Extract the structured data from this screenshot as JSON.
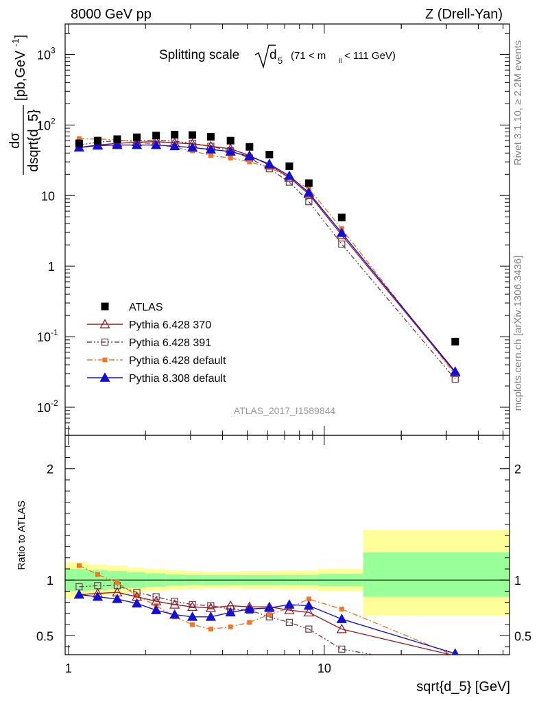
{
  "header": {
    "left": "8000 GeV pp",
    "right": "Z (Drell-Yan)"
  },
  "side_labels": {
    "rivet": "Rivet 3.1.10, ≥ 2.2M events",
    "mcplots": "mcplots.cern.ch [arXiv:1306.3436]"
  },
  "watermark": "ATLAS_2017_I1589844",
  "title": {
    "prefix": "Splitting scale",
    "symbol": "d",
    "sub": "5",
    "range_left": "(71 < m",
    "range_sub": "ll",
    "range_right": " < 111 GeV)"
  },
  "axes": {
    "ylabel_main": "dσ / dsqrt{d_5} [pb,GeV⁻¹]",
    "ylabel_num": "dσ",
    "ylabel_den": "dsqrt{d_5}",
    "ylabel_unit_a": "[pb,GeV",
    "ylabel_unit_exp": "-1",
    "ylabel_unit_b": "]",
    "ylabel_ratio": "Ratio to ATLAS",
    "xlabel": "sqrt{d_5} [GeV]",
    "x_ticks": [
      "1",
      "10"
    ],
    "y_ticks_main": [
      {
        "base": "10",
        "exp": "-2"
      },
      {
        "base": "10",
        "exp": "-1"
      },
      {
        "base": "1",
        "exp": ""
      },
      {
        "base": "10",
        "exp": ""
      },
      {
        "base": "10",
        "exp": "2"
      },
      {
        "base": "10",
        "exp": "3"
      }
    ],
    "y_ticks_ratio": [
      "0.5",
      "1",
      "2"
    ]
  },
  "legend": [
    {
      "label": "ATLAS"
    },
    {
      "label": "Pythia 6.428 370"
    },
    {
      "label": "Pythia 6.428 391"
    },
    {
      "label": "Pythia 6.428 default"
    },
    {
      "label": "Pythia 8.308 default"
    }
  ],
  "colors": {
    "atlas": "#000000",
    "p370": "#9b1b24",
    "p391": "#6e4450",
    "p6def": "#f07828",
    "p8def": "#1410d2",
    "band_green": "#99ff99",
    "band_yellow": "#ffff99"
  },
  "chart_data": {
    "type": "scatter",
    "x_scale": "log",
    "xlim": [
      0.97,
      53
    ],
    "main": {
      "y_scale": "log",
      "ylim": [
        0.004,
        2700
      ],
      "x": [
        1.1,
        1.3,
        1.55,
        1.85,
        2.2,
        2.6,
        3.05,
        3.6,
        4.3,
        5.1,
        6.1,
        7.3,
        8.7,
        11.7,
        32.5
      ],
      "series": [
        {
          "key": "atlas",
          "name": "ATLAS",
          "values": [
            55,
            60,
            63,
            67,
            71,
            73,
            72,
            68,
            60,
            49,
            38,
            26,
            15,
            4.9,
            0.085
          ]
        },
        {
          "key": "p370",
          "name": "Pythia 6.428 370",
          "values": [
            48,
            52,
            55,
            57,
            58,
            56,
            54,
            50,
            46,
            37,
            27,
            18,
            10.5,
            2.75,
            0.031
          ]
        },
        {
          "key": "p391",
          "name": "Pythia 6.428 391",
          "values": [
            52,
            57,
            60,
            60,
            61,
            59,
            55,
            50,
            43,
            34,
            24,
            15.5,
            8.2,
            2.05,
            0.025
          ]
        },
        {
          "key": "p6def",
          "name": "Pythia 6.428 default",
          "values": [
            64,
            63,
            62,
            57,
            53,
            48,
            43,
            37,
            34,
            30,
            25,
            18,
            12.5,
            3.4,
            0.029
          ]
        },
        {
          "key": "p8def",
          "name": "Pythia 8.308 default",
          "values": [
            48,
            51,
            52,
            52,
            52,
            50,
            48,
            45,
            42,
            36,
            28,
            19,
            11,
            2.95,
            0.032
          ]
        }
      ]
    },
    "ratio": {
      "y_scale": "linear",
      "ylim": [
        0.33,
        2.3
      ],
      "x": [
        1.1,
        1.3,
        1.55,
        1.85,
        2.2,
        2.6,
        3.05,
        3.6,
        4.3,
        5.1,
        6.1,
        7.3,
        8.7,
        11.7,
        32.5
      ],
      "series": [
        {
          "key": "p370",
          "values": [
            0.87,
            0.88,
            0.89,
            0.85,
            0.81,
            0.78,
            0.76,
            0.75,
            0.77,
            0.76,
            0.76,
            0.73,
            0.71,
            0.56,
            0.32
          ]
        },
        {
          "key": "p391",
          "values": [
            0.94,
            0.95,
            0.95,
            0.89,
            0.85,
            0.81,
            0.78,
            0.77,
            0.74,
            0.73,
            0.67,
            0.62,
            0.56,
            0.38,
            0.2
          ]
        },
        {
          "key": "p6def",
          "values": [
            1.13,
            1.05,
            0.98,
            0.86,
            0.77,
            0.67,
            0.6,
            0.56,
            0.58,
            0.62,
            0.69,
            0.75,
            0.83,
            0.74,
            0.32
          ]
        },
        {
          "key": "p8def",
          "values": [
            0.87,
            0.85,
            0.83,
            0.79,
            0.73,
            0.69,
            0.67,
            0.67,
            0.71,
            0.74,
            0.75,
            0.78,
            0.77,
            0.65,
            0.34
          ]
        }
      ],
      "bands": [
        {
          "xlo": 0.97,
          "xhi": 1.2,
          "green": [
            0.9,
            1.1
          ],
          "yellow": [
            0.84,
            1.16
          ]
        },
        {
          "xlo": 1.2,
          "xhi": 1.42,
          "green": [
            0.91,
            1.09
          ],
          "yellow": [
            0.86,
            1.14
          ]
        },
        {
          "xlo": 1.42,
          "xhi": 1.7,
          "green": [
            0.92,
            1.08
          ],
          "yellow": [
            0.87,
            1.13
          ]
        },
        {
          "xlo": 1.7,
          "xhi": 2.0,
          "green": [
            0.93,
            1.07
          ],
          "yellow": [
            0.89,
            1.11
          ]
        },
        {
          "xlo": 2.0,
          "xhi": 2.4,
          "green": [
            0.94,
            1.06
          ],
          "yellow": [
            0.9,
            1.1
          ]
        },
        {
          "xlo": 2.4,
          "xhi": 2.85,
          "green": [
            0.95,
            1.05
          ],
          "yellow": [
            0.91,
            1.09
          ]
        },
        {
          "xlo": 2.85,
          "xhi": 3.35,
          "green": [
            0.955,
            1.045
          ],
          "yellow": [
            0.92,
            1.08
          ]
        },
        {
          "xlo": 3.35,
          "xhi": 4.0,
          "green": [
            0.955,
            1.045
          ],
          "yellow": [
            0.925,
            1.075
          ]
        },
        {
          "xlo": 4.0,
          "xhi": 4.7,
          "green": [
            0.955,
            1.045
          ],
          "yellow": [
            0.925,
            1.075
          ]
        },
        {
          "xlo": 4.7,
          "xhi": 5.6,
          "green": [
            0.955,
            1.045
          ],
          "yellow": [
            0.92,
            1.08
          ]
        },
        {
          "xlo": 5.6,
          "xhi": 6.7,
          "green": [
            0.955,
            1.045
          ],
          "yellow": [
            0.92,
            1.08
          ]
        },
        {
          "xlo": 6.7,
          "xhi": 8.0,
          "green": [
            0.955,
            1.045
          ],
          "yellow": [
            0.915,
            1.085
          ]
        },
        {
          "xlo": 8.0,
          "xhi": 9.5,
          "green": [
            0.955,
            1.045
          ],
          "yellow": [
            0.915,
            1.085
          ]
        },
        {
          "xlo": 9.5,
          "xhi": 14.2,
          "green": [
            0.945,
            1.055
          ],
          "yellow": [
            0.9,
            1.1
          ]
        },
        {
          "xlo": 14.2,
          "xhi": 53,
          "green": [
            0.85,
            1.25
          ],
          "yellow": [
            0.68,
            1.45
          ]
        }
      ]
    }
  }
}
